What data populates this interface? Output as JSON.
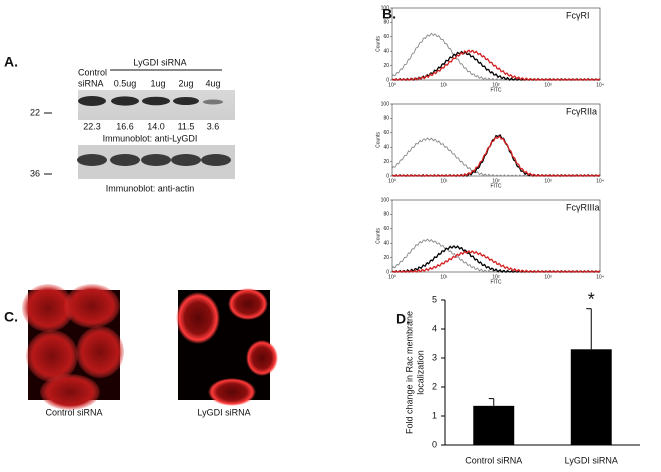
{
  "panel_a": {
    "label": "A.",
    "control_label": [
      "Control",
      "siRNA"
    ],
    "group_label": "LyGDI siRNA",
    "lanes": [
      "0.5ug",
      "1ug",
      "2ug",
      "4ug"
    ],
    "band_values": [
      "22.3",
      "16.6",
      "14.0",
      "11.5",
      "3.6"
    ],
    "marker_top": "22",
    "marker_bottom": "36",
    "caption_top": "Immunoblot: anti-LyGDI",
    "caption_bottom": "Immunoblot: anti-actin"
  },
  "panel_b": {
    "label": "B.",
    "plots": [
      "FcγRI",
      "FcγRIIa",
      "FcγRIIIa"
    ],
    "ylabel": "Counts",
    "xlabel": "FITC",
    "yticks": [
      0,
      20,
      40,
      60,
      80,
      100
    ],
    "xticks": [
      "10⁰",
      "10¹",
      "10²",
      "10³",
      "10⁴"
    ]
  },
  "panel_c": {
    "label": "C.",
    "captions": [
      "Control siRNA",
      "LyGDI siRNA"
    ]
  },
  "chart_data": {
    "type": "bar",
    "label": "D.",
    "ylabel": [
      "Fold change in Rac membrane",
      "localization"
    ],
    "categories": [
      "Control siRNA",
      "LyGDI siRNA"
    ],
    "values": [
      1.35,
      3.3
    ],
    "errors": [
      0.25,
      1.4
    ],
    "color": "#000000",
    "ylim": [
      0,
      5
    ],
    "yticks": [
      0,
      1,
      2,
      3,
      4,
      5
    ],
    "annotation": "*"
  }
}
